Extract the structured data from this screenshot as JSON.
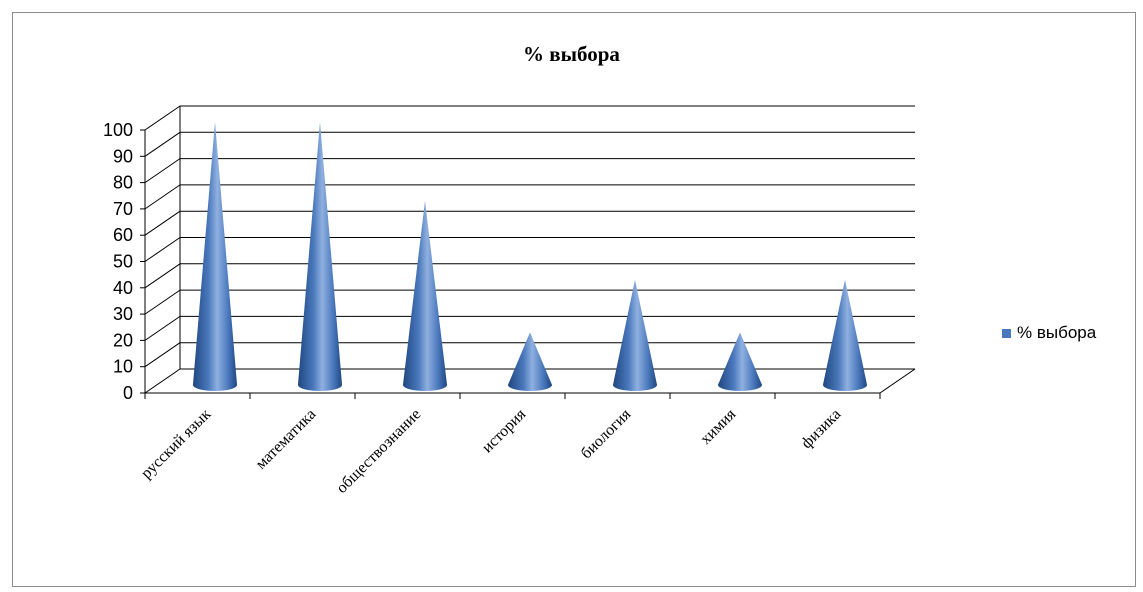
{
  "chart_data": {
    "type": "bar",
    "subtype": "3d-cone",
    "title": "% выбора",
    "categories": [
      "русский язык",
      "математика",
      "обществознание",
      "история",
      "биология",
      "химия",
      "физика"
    ],
    "series": [
      {
        "name": "% выбора",
        "values": [
          100,
          100,
          70,
          20,
          40,
          20,
          40
        ]
      }
    ],
    "ylim": [
      0,
      100
    ],
    "yticks": [
      "0",
      "10",
      "20",
      "30",
      "40",
      "50",
      "60",
      "70",
      "80",
      "90",
      "100"
    ],
    "grid": true,
    "legend": "right",
    "colors": {
      "series": "#4a78bc",
      "series_dark": "#1f4780",
      "series_light": "#8fb0e0",
      "grid": "#000000"
    }
  }
}
